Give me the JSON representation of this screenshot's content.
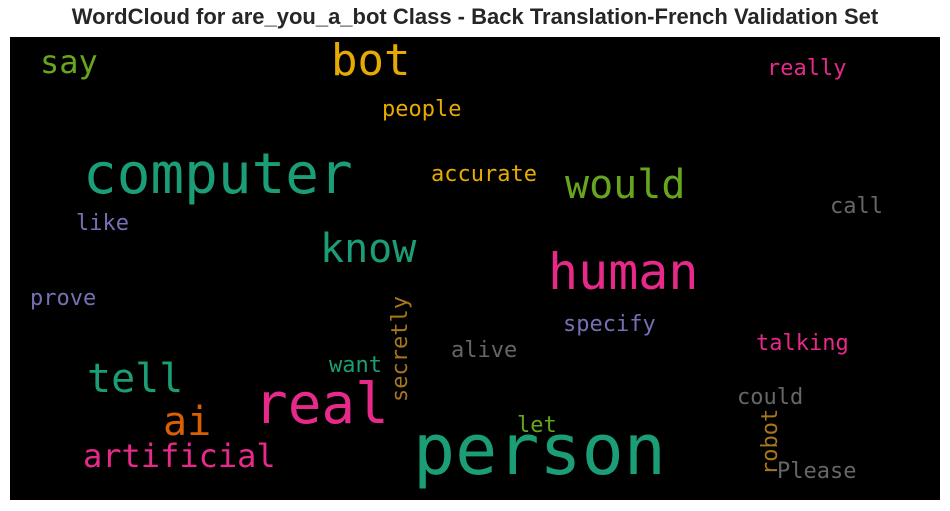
{
  "title": "WordCloud for are_you_a_bot Class - Back Translation-French Validation Set",
  "words": [
    {
      "text": "say",
      "color": "#66a61e"
    },
    {
      "text": "bot",
      "color": "#e6ab02"
    },
    {
      "text": "really",
      "color": "#e7298a"
    },
    {
      "text": "people",
      "color": "#e6ab02"
    },
    {
      "text": "computer",
      "color": "#1b9e77"
    },
    {
      "text": "accurate",
      "color": "#e6ab02"
    },
    {
      "text": "would",
      "color": "#66a61e"
    },
    {
      "text": "call",
      "color": "#666666"
    },
    {
      "text": "like",
      "color": "#7570b3"
    },
    {
      "text": "know",
      "color": "#1b9e77"
    },
    {
      "text": "human",
      "color": "#e7298a"
    },
    {
      "text": "prove",
      "color": "#7570b3"
    },
    {
      "text": "secretly",
      "color": "#a6761d"
    },
    {
      "text": "specify",
      "color": "#7570b3"
    },
    {
      "text": "talking",
      "color": "#e7298a"
    },
    {
      "text": "alive",
      "color": "#666666"
    },
    {
      "text": "want",
      "color": "#1b9e77"
    },
    {
      "text": "tell",
      "color": "#1b9e77"
    },
    {
      "text": "could",
      "color": "#666666"
    },
    {
      "text": "real",
      "color": "#e7298a"
    },
    {
      "text": "ai",
      "color": "#d95f02"
    },
    {
      "text": "let",
      "color": "#66a61e"
    },
    {
      "text": "robot",
      "color": "#a6761d"
    },
    {
      "text": "artificial",
      "color": "#e7298a"
    },
    {
      "text": "person",
      "color": "#1b9e77"
    },
    {
      "text": "Please",
      "color": "#666666"
    }
  ]
}
